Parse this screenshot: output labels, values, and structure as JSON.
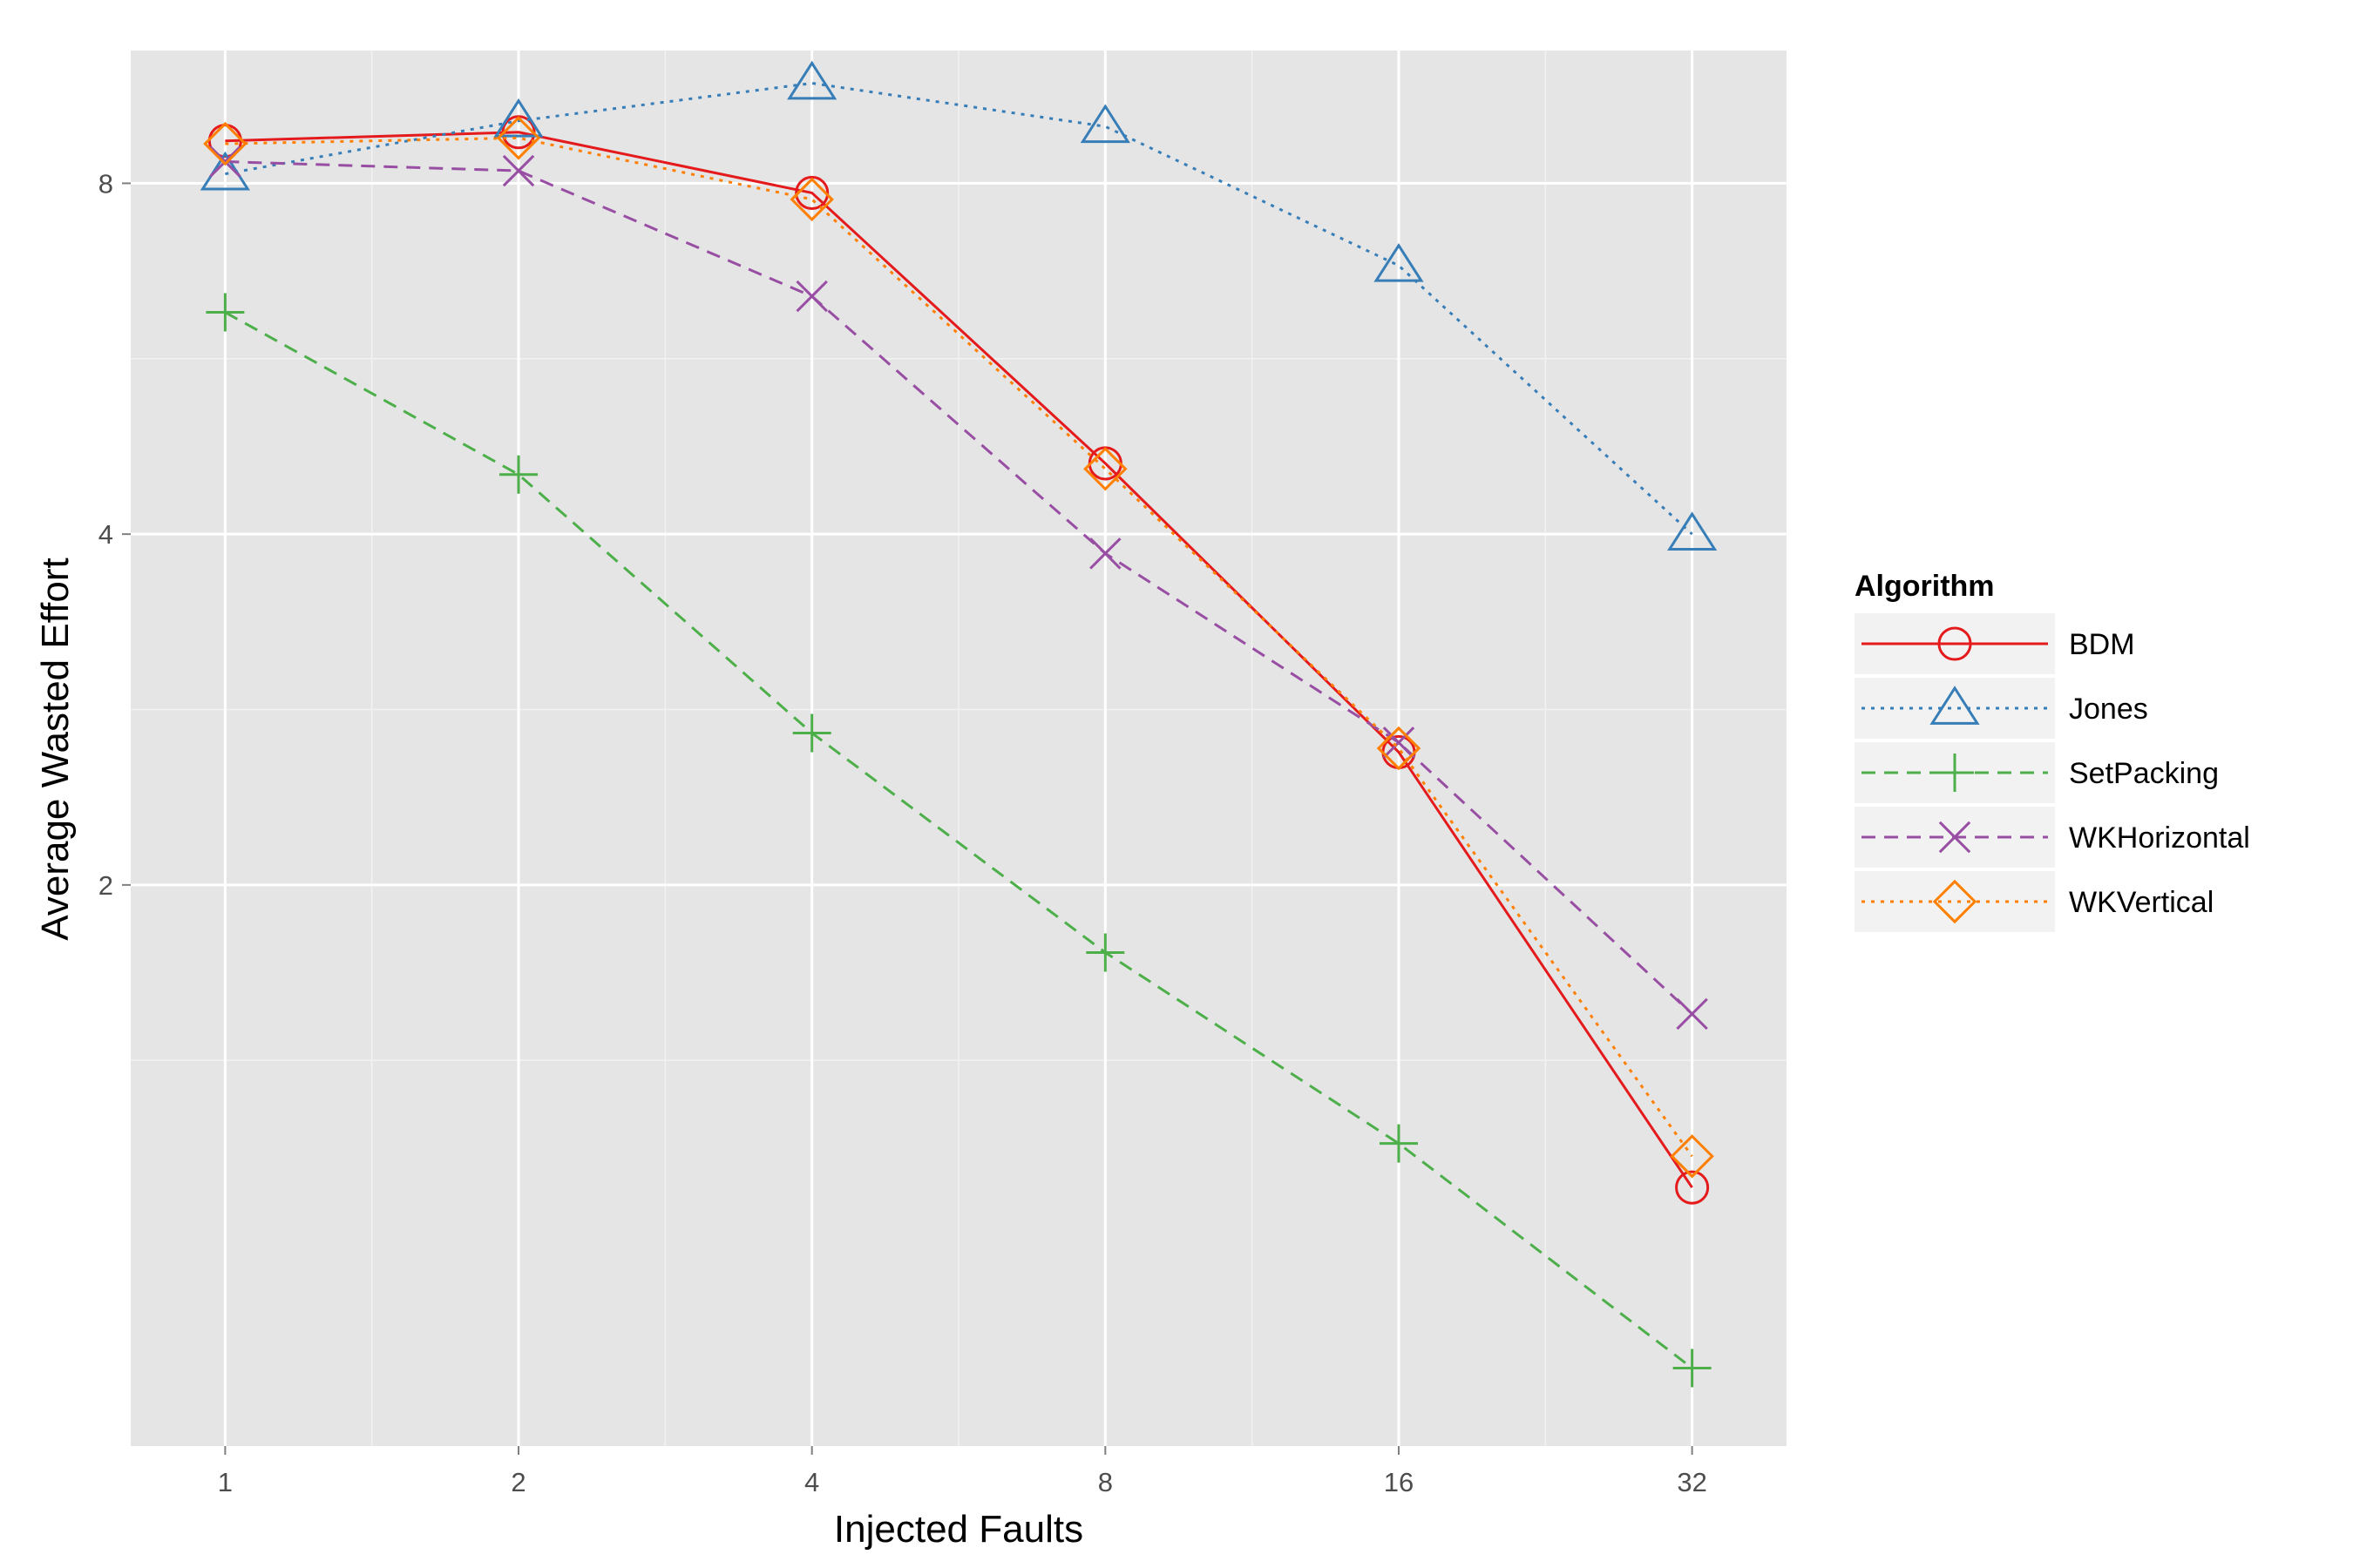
{
  "chart_data": {
    "type": "line",
    "xlabel": "Injected Faults",
    "ylabel": "Average Wasted Effort",
    "x": [
      1,
      2,
      4,
      8,
      16,
      32
    ],
    "x_scale": "log2",
    "y_scale": "log2",
    "xlim": [
      0.8,
      40
    ],
    "ylim": [
      0.66,
      10.4
    ],
    "x_ticks": [
      1,
      2,
      4,
      8,
      16,
      32
    ],
    "x_tick_labels": [
      "1",
      "2",
      "4",
      "8",
      "16",
      "32"
    ],
    "y_ticks": [
      2,
      4,
      8
    ],
    "y_tick_labels": [
      "2",
      "4",
      "8"
    ],
    "grid": true,
    "legend": {
      "title": "Algorithm",
      "position": "right"
    },
    "series": [
      {
        "name": "BDM",
        "values": [
          8.7,
          8.85,
          7.85,
          4.6,
          2.6,
          1.1
        ],
        "color": "#e41a1c",
        "dash": "solid",
        "marker": "circle"
      },
      {
        "name": "Jones",
        "values": [
          8.15,
          9.05,
          9.75,
          8.95,
          6.8,
          4.0
        ],
        "color": "#377eb8",
        "dash": "dotted",
        "marker": "triangle"
      },
      {
        "name": "SetPacking",
        "values": [
          6.2,
          4.5,
          2.7,
          1.75,
          1.2,
          0.77
        ],
        "color": "#4daf4a",
        "dash": "dashed",
        "marker": "plus"
      },
      {
        "name": "WKHorizontal",
        "values": [
          8.35,
          8.2,
          6.4,
          3.85,
          2.65,
          1.55
        ],
        "color": "#984ea3",
        "dash": "dashed",
        "marker": "cross"
      },
      {
        "name": "WKVertical",
        "values": [
          8.65,
          8.75,
          7.75,
          4.55,
          2.62,
          1.17
        ],
        "color": "#ff7f00",
        "dash": "dotted",
        "marker": "diamond"
      }
    ]
  }
}
